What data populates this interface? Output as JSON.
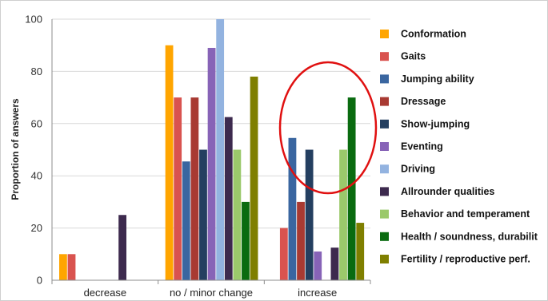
{
  "chart_data": {
    "type": "bar",
    "title": "",
    "xlabel": "",
    "ylabel": "Proportion of answers",
    "ylim": [
      0,
      100
    ],
    "yticks": [
      0,
      20,
      40,
      60,
      80,
      100
    ],
    "grid": true,
    "legend_position": "right",
    "categories": [
      "decrease",
      "no / minor change",
      "increase"
    ],
    "series": [
      {
        "name": "Conformation",
        "color": "#ffa500",
        "values": [
          10,
          90,
          0
        ]
      },
      {
        "name": "Gaits",
        "color": "#d9534f",
        "values": [
          10,
          70,
          20
        ]
      },
      {
        "name": "Jumping ability",
        "color": "#3a66a0",
        "values": [
          0,
          45.5,
          54.5
        ]
      },
      {
        "name": "Dressage",
        "color": "#a83a32",
        "values": [
          0,
          70,
          30
        ]
      },
      {
        "name": "Show-jumping",
        "color": "#243f60",
        "values": [
          0,
          50,
          50
        ]
      },
      {
        "name": "Eventing",
        "color": "#8763b7",
        "values": [
          0,
          89,
          11
        ]
      },
      {
        "name": "Driving",
        "color": "#93b3e0",
        "values": [
          0,
          100,
          0
        ]
      },
      {
        "name": "Allrounder qualities",
        "color": "#3d2a4e",
        "values": [
          25,
          62.5,
          12.5
        ]
      },
      {
        "name": "Behavior and temperament",
        "color": "#9bc96b",
        "values": [
          0,
          50,
          50
        ]
      },
      {
        "name": "Health / soundness, durabilit",
        "color": "#0a6b10",
        "values": [
          0,
          30,
          70
        ]
      },
      {
        "name": "Fertility / reproductive perf.",
        "color": "#7f7f00",
        "values": [
          0,
          78,
          22
        ]
      }
    ]
  },
  "annotation": {
    "shape": "ellipse",
    "color": "#e01010",
    "target_category": "increase"
  }
}
